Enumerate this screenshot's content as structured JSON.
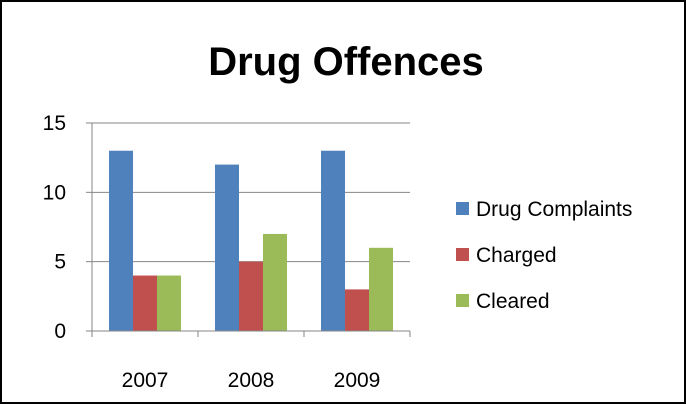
{
  "chart_data": {
    "type": "bar",
    "title": "Drug Offences",
    "xlabel": "",
    "ylabel": "",
    "categories": [
      "2007",
      "2008",
      "2009"
    ],
    "series": [
      {
        "name": "Drug Complaints",
        "values": [
          13,
          12,
          13
        ],
        "color": "#4F81BD"
      },
      {
        "name": "Charged",
        "values": [
          4,
          5,
          3
        ],
        "color": "#C0504D"
      },
      {
        "name": "Cleared",
        "values": [
          4,
          7,
          6
        ],
        "color": "#9BBB59"
      }
    ],
    "ylim": [
      0,
      15
    ],
    "yticks": [
      0,
      5,
      10,
      15
    ],
    "grid": true,
    "legend_position": "right"
  }
}
